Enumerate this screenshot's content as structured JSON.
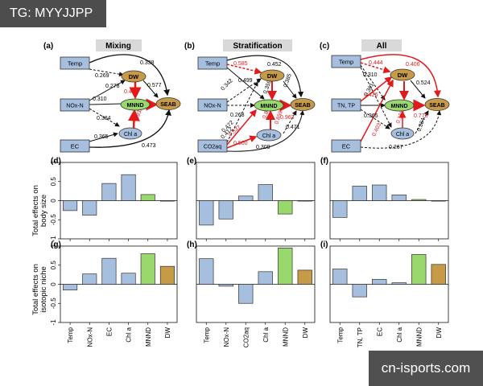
{
  "header_tag": "TG: MYYJJPP",
  "watermark": "cn-isports.com",
  "colors": {
    "blue_box": "#a7bfdf",
    "green": "#99d86c",
    "brown": "#c69a47",
    "red": "#e31a1c",
    "black": "#111111"
  },
  "ylabel_top_1": "Total effects on",
  "ylabel_top_2": "body size",
  "ylabel_bot_1": "Total effects on",
  "ylabel_bot_2": "isotopic niche",
  "panels": [
    {
      "letter": "(a)",
      "title": "Mixing",
      "nodes": {
        "temp": "Temp",
        "nut": "NOx-N",
        "env": "EC",
        "dw": "DW",
        "mnnd": "MNND",
        "chl": "Chl a",
        "sea": "SEAB"
      },
      "path_labels": [
        "0.338",
        "0.269",
        "0.278",
        "0.310",
        "0.577",
        "0.426",
        "0.933",
        "0.384",
        "0.365",
        "0.473"
      ],
      "label_colors": [
        "#111111",
        "#111111",
        "#111111",
        "#111111",
        "#111111",
        "#e31a1c",
        "#e31a1c",
        "#111111",
        "#111111",
        "#111111"
      ]
    },
    {
      "letter": "(b)",
      "title": "Stratification",
      "nodes": {
        "temp": "Temp",
        "nut": "NOx-N",
        "env": "CO2aq",
        "dw": "DW",
        "mnnd": "MNND",
        "chl": "Chl a",
        "sea": "SEAB"
      },
      "path_labels": [
        "0.585",
        "0.452",
        "0.342",
        "0.499",
        "0.268",
        "0.359",
        "0.385",
        "0.472",
        "0.963",
        "0.412",
        "0.870",
        "0.859",
        "0.537",
        "0.500",
        "0.471",
        "0.309"
      ],
      "label_colors": [
        "#e31a1c",
        "#111111",
        "#111111",
        "#111111",
        "#111111",
        "#111111",
        "#111111",
        "#111111",
        "#e31a1c",
        "#111111",
        "#e31a1c",
        "#e31a1c",
        "#e31a1c",
        "#e31a1c",
        "#111111",
        "#111111"
      ]
    },
    {
      "letter": "(c)",
      "title": "All",
      "nodes": {
        "temp": "Temp",
        "nut": "TN, TP",
        "env": "EC",
        "dw": "DW",
        "mnnd": "MNND",
        "chl": "Chl a",
        "sea": "SEAB"
      },
      "path_labels": [
        "0.444",
        "0.406",
        "0.310",
        "0.361",
        "0.524",
        "0.426",
        "0.365",
        "0.773",
        "0.158",
        "0.403",
        "0.364",
        "0.267"
      ],
      "label_colors": [
        "#e31a1c",
        "#e31a1c",
        "#111111",
        "#111111",
        "#111111",
        "#e31a1c",
        "#111111",
        "#e31a1c",
        "#e31a1c",
        "#e31a1c",
        "#111111",
        "#111111"
      ]
    }
  ],
  "chart_data": [
    {
      "type": "bar",
      "panel": "(d)",
      "ylabel": "Total effects on body size",
      "ylim": [
        -1,
        1
      ],
      "yticks": [
        "-1",
        "-0.5",
        "0",
        "0.5",
        "1"
      ],
      "categories": [
        "Temp",
        "NOx-N",
        "EC",
        "Chl a",
        "MNND",
        "DW"
      ],
      "values": [
        -0.26,
        -0.38,
        0.45,
        0.68,
        0.16,
        0.0
      ]
    },
    {
      "type": "bar",
      "panel": "(e)",
      "ylim": [
        -1,
        1
      ],
      "categories": [
        "Temp",
        "NOx-N",
        "CO2aq",
        "Chl a",
        "MNND",
        "DW"
      ],
      "values": [
        -0.64,
        -0.48,
        0.12,
        0.42,
        -0.35,
        0.0
      ]
    },
    {
      "type": "bar",
      "panel": "(f)",
      "ylim": [
        -1,
        1
      ],
      "categories": [
        "Temp",
        "TN, TP",
        "EC",
        "Chl a",
        "MNND",
        "DW"
      ],
      "values": [
        -0.44,
        0.38,
        0.41,
        0.15,
        0.03,
        0.0
      ]
    },
    {
      "type": "bar",
      "panel": "(g)",
      "ylabel": "Total effects on isotopic niche",
      "ylim": [
        -1,
        1
      ],
      "yticks": [
        "-1",
        "-0.5",
        "0",
        "0.5",
        "1"
      ],
      "categories": [
        "Temp",
        "NOx-N",
        "EC",
        "Chl a",
        "MNND",
        "DW"
      ],
      "values": [
        -0.15,
        0.27,
        0.68,
        0.29,
        0.8,
        0.47
      ]
    },
    {
      "type": "bar",
      "panel": "(h)",
      "ylim": [
        -1,
        1
      ],
      "categories": [
        "Temp",
        "NOx-N",
        "CO2aq",
        "Chl a",
        "MNND",
        "DW"
      ],
      "values": [
        0.67,
        -0.05,
        -0.5,
        0.33,
        0.95,
        0.37
      ]
    },
    {
      "type": "bar",
      "panel": "(i)",
      "ylim": [
        -1,
        1
      ],
      "categories": [
        "Temp",
        "TN, TP",
        "EC",
        "Chl a",
        "MNND",
        "DW"
      ],
      "values": [
        0.4,
        -0.33,
        0.13,
        0.04,
        0.78,
        0.52
      ]
    }
  ]
}
